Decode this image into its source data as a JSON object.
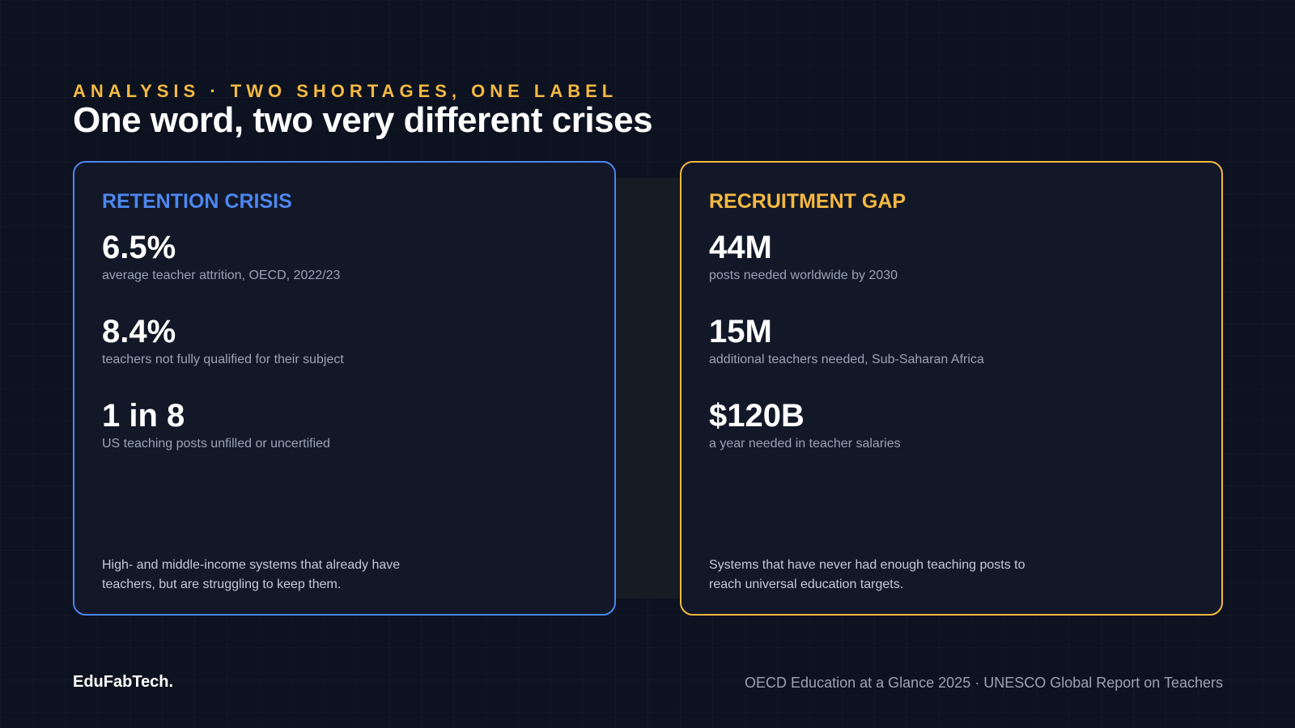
{
  "header": {
    "eyebrow": "ANALYSIS · TWO SHORTAGES, ONE LABEL",
    "title": "One word, two very different crises"
  },
  "cards": [
    {
      "title": "RETENTION CRISIS",
      "accent": "#4d86ef",
      "stats": [
        {
          "value": "6.5%",
          "label": "average teacher attrition, OECD, 2022/23"
        },
        {
          "value": "8.4%",
          "label": "teachers not fully qualified for their subject"
        },
        {
          "value": "1 in 8",
          "label": "US teaching posts unfilled or uncertified"
        }
      ],
      "note": "High- and middle-income systems that already have teachers, but are struggling to keep them."
    },
    {
      "title": "RECRUITMENT GAP",
      "accent": "#f5b942",
      "stats": [
        {
          "value": "44M",
          "label": "posts needed worldwide by 2030"
        },
        {
          "value": "15M",
          "label": "additional teachers needed, Sub-Saharan Africa"
        },
        {
          "value": "$120B",
          "label": "a year needed in teacher salaries"
        }
      ],
      "note": "Systems that have never had enough teaching posts to reach universal education targets."
    }
  ],
  "footer": {
    "brand": "EduFabTech.",
    "source": "OECD Education at a Glance 2025 · UNESCO Global Report on Teachers"
  }
}
